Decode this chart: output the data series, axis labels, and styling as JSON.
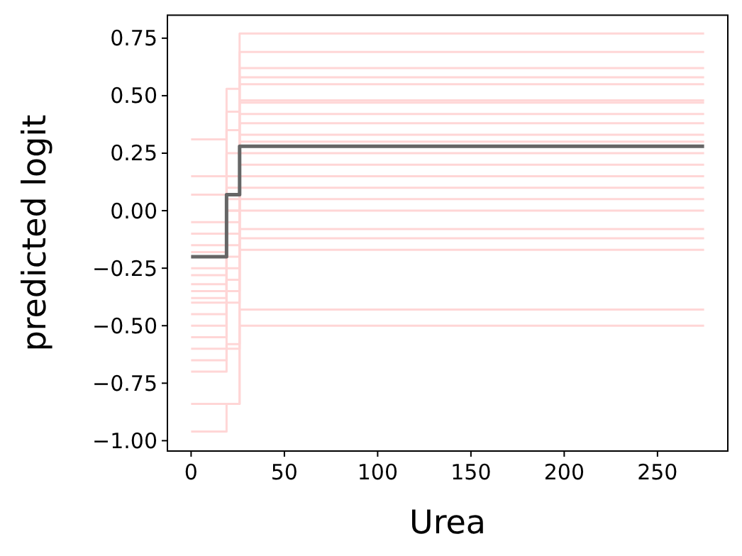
{
  "chart_data": {
    "type": "step",
    "xlabel": "Urea",
    "ylabel": "predicted logit",
    "xlim": [
      -12.7,
      287.7
    ],
    "ylim": [
      -1.045,
      0.85
    ],
    "xticks": [
      0,
      50,
      100,
      150,
      200,
      250
    ],
    "yticks": [
      {
        "value": -1,
        "label": "−1.00"
      },
      {
        "value": -0.75,
        "label": "−0.75"
      },
      {
        "value": -0.5,
        "label": "−0.50"
      },
      {
        "value": -0.25,
        "label": "−0.25"
      },
      {
        "value": 0,
        "label": "0.00"
      },
      {
        "value": 0.25,
        "label": "0.25"
      },
      {
        "value": 0.5,
        "label": "0.50"
      },
      {
        "value": 0.75,
        "label": "0.75"
      }
    ],
    "grid": false,
    "x": [
      0,
      19,
      26,
      275
    ],
    "series": [
      {
        "color": "#ffd6d6",
        "values": [
          -0.96,
          -0.84,
          -0.5,
          -0.5
        ]
      },
      {
        "color": "#ffd6d6",
        "values": [
          -0.84,
          -0.84,
          -0.43,
          -0.43
        ]
      },
      {
        "color": "#ffd6d6",
        "values": [
          0.31,
          0.53,
          0.77,
          0.77
        ]
      },
      {
        "color": "#ffd6d6",
        "values": [
          0.15,
          0.43,
          0.69,
          0.69
        ]
      },
      {
        "color": "#ffd6d6",
        "values": [
          0.07,
          0.35,
          0.62,
          0.62
        ]
      },
      {
        "color": "#ffd6d6",
        "values": [
          -0.05,
          0.25,
          0.55,
          0.55
        ]
      },
      {
        "color": "#ffd6d6",
        "values": [
          -0.1,
          0.15,
          0.47,
          0.47
        ]
      },
      {
        "color": "#ffd6d6",
        "values": [
          -0.15,
          0.1,
          0.42,
          0.42
        ]
      },
      {
        "color": "#ffd6d6",
        "values": [
          -0.2,
          0.05,
          0.38,
          0.38
        ]
      },
      {
        "color": "#ffd6d6",
        "values": [
          -0.25,
          0,
          0.33,
          0.33
        ]
      },
      {
        "color": "#ffd6d6",
        "values": [
          -0.28,
          -0.05,
          0.3,
          0.3
        ]
      },
      {
        "color": "#ffd6d6",
        "values": [
          -0.32,
          -0.1,
          0.25,
          0.25
        ]
      },
      {
        "color": "#ffd6d6",
        "values": [
          -0.35,
          -0.15,
          0.2,
          0.2
        ]
      },
      {
        "color": "#ffd6d6",
        "values": [
          -0.4,
          -0.2,
          0.15,
          0.15
        ]
      },
      {
        "color": "#ffd6d6",
        "values": [
          -0.45,
          -0.25,
          0.1,
          0.1
        ]
      },
      {
        "color": "#ffd6d6",
        "values": [
          -0.5,
          -0.3,
          0.05,
          0.05
        ]
      },
      {
        "color": "#ffd6d6",
        "values": [
          -0.55,
          -0.35,
          0,
          0
        ]
      },
      {
        "color": "#ffd6d6",
        "values": [
          -0.6,
          -0.4,
          -0.08,
          -0.08
        ]
      },
      {
        "color": "#ffd6d6",
        "values": [
          -0.65,
          -0.6,
          -0.17,
          -0.17
        ]
      },
      {
        "color": "#ffd6d6",
        "values": [
          -0.7,
          -0.58,
          -0.12,
          -0.12
        ]
      },
      {
        "color": "#ffd6d6",
        "values": [
          -0.38,
          -0.3,
          0.48,
          0.48
        ]
      },
      {
        "color": "#ffd6d6",
        "values": [
          -0.18,
          0,
          0.58,
          0.58
        ]
      },
      {
        "color": "#666666",
        "values": [
          -0.2,
          0.07,
          0.28,
          0.28
        ]
      }
    ]
  }
}
